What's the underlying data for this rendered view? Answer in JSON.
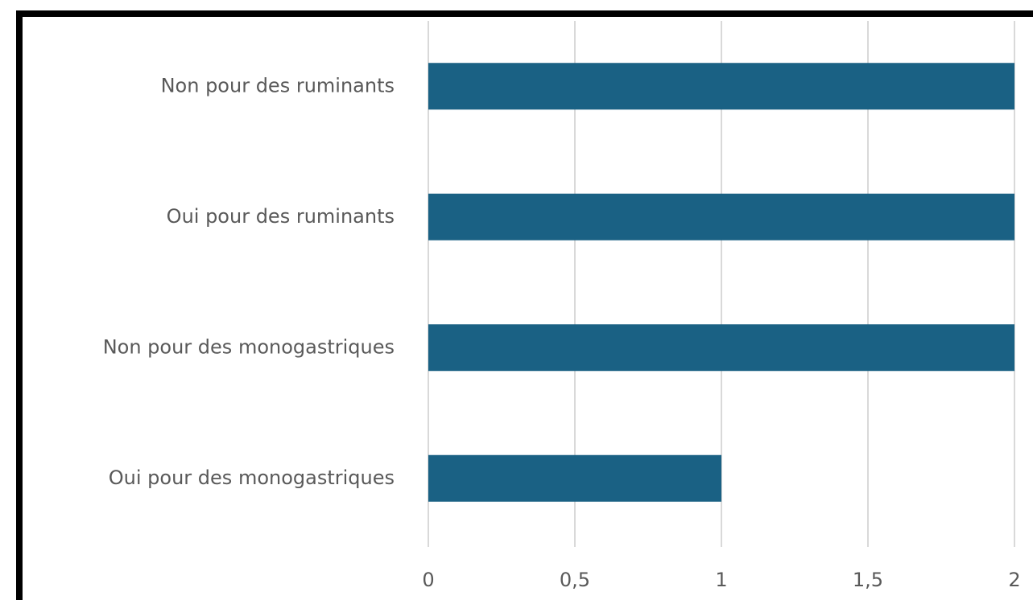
{
  "chart_data": {
    "type": "barh",
    "categories": [
      "Non pour des ruminants",
      "Oui pour des ruminants",
      "Non pour des monogastriques",
      "Oui pour des monogastriques"
    ],
    "values": [
      2,
      2,
      2,
      1
    ],
    "color": "#1a6184",
    "xlim": [
      0,
      2
    ],
    "xticks": [
      0,
      {
        "value": 0.5,
        "label": "0,5"
      },
      1,
      {
        "value": 1.5,
        "label": "1,5"
      },
      2
    ],
    "grid": true
  }
}
